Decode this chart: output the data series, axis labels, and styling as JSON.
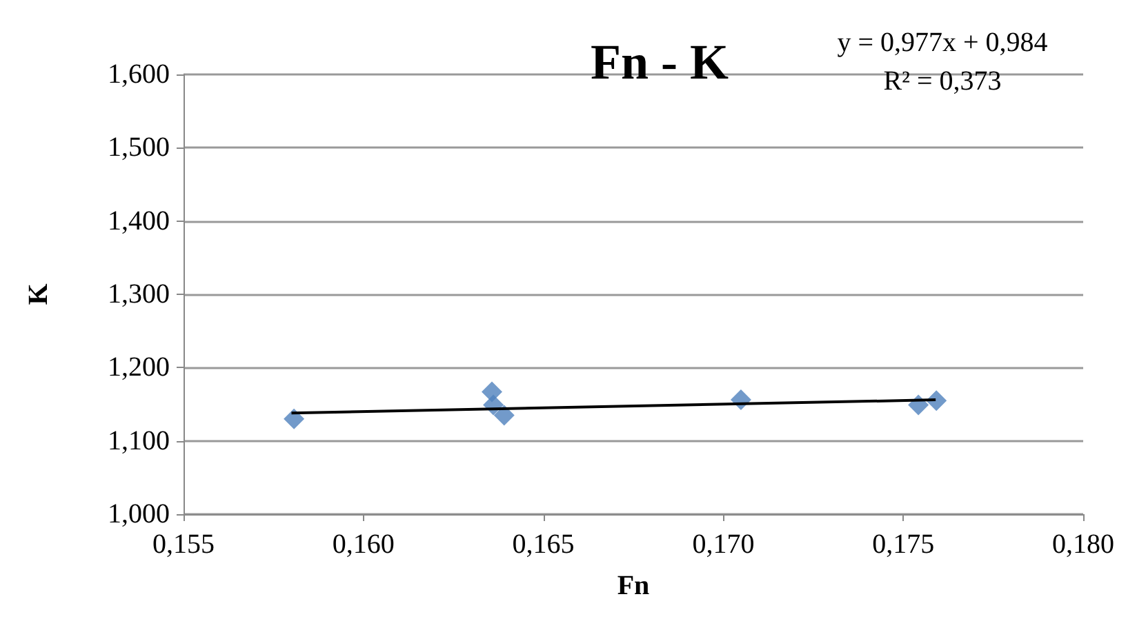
{
  "chart_data": {
    "type": "scatter",
    "title": "Fn - K",
    "xlabel": "Fn",
    "ylabel": "K",
    "annotations": [
      "y = 0,977x + 0,984",
      "R² = 0,373"
    ],
    "series": [
      {
        "color": "#4f81bd",
        "marker": "diamond",
        "x": [
          0.15807,
          0.16357,
          0.16361,
          0.16391,
          0.17049,
          0.17542,
          0.17592
        ],
        "values": [
          1.13,
          1.167,
          1.149,
          1.135,
          1.156,
          1.149,
          1.155
        ]
      },
      {
        "type": "line",
        "color": "#000000",
        "marker": "none",
        "x": [
          0.158,
          0.1759
        ],
        "values": [
          1.138,
          1.156
        ]
      }
    ],
    "xlim": [
      0.155,
      0.18
    ],
    "xticks": [
      {
        "value": 0.155,
        "label": "0,155"
      },
      {
        "value": 0.16,
        "label": "0,160"
      },
      {
        "value": 0.165,
        "label": "0,165"
      },
      {
        "value": 0.17,
        "label": "0,170"
      },
      {
        "value": 0.175,
        "label": "0,175"
      },
      {
        "value": 0.18,
        "label": "0,180"
      }
    ],
    "ylim": [
      1.0,
      1.6
    ],
    "yticks": [
      {
        "value": 1.0,
        "label": "1,000"
      },
      {
        "value": 1.1,
        "label": "1,100"
      },
      {
        "value": 1.2,
        "label": "1,200"
      },
      {
        "value": 1.3,
        "label": "1,300"
      },
      {
        "value": 1.4,
        "label": "1,400"
      },
      {
        "value": 1.5,
        "label": "1,500"
      },
      {
        "value": 1.6,
        "label": "1,600"
      }
    ],
    "grid": "y"
  }
}
